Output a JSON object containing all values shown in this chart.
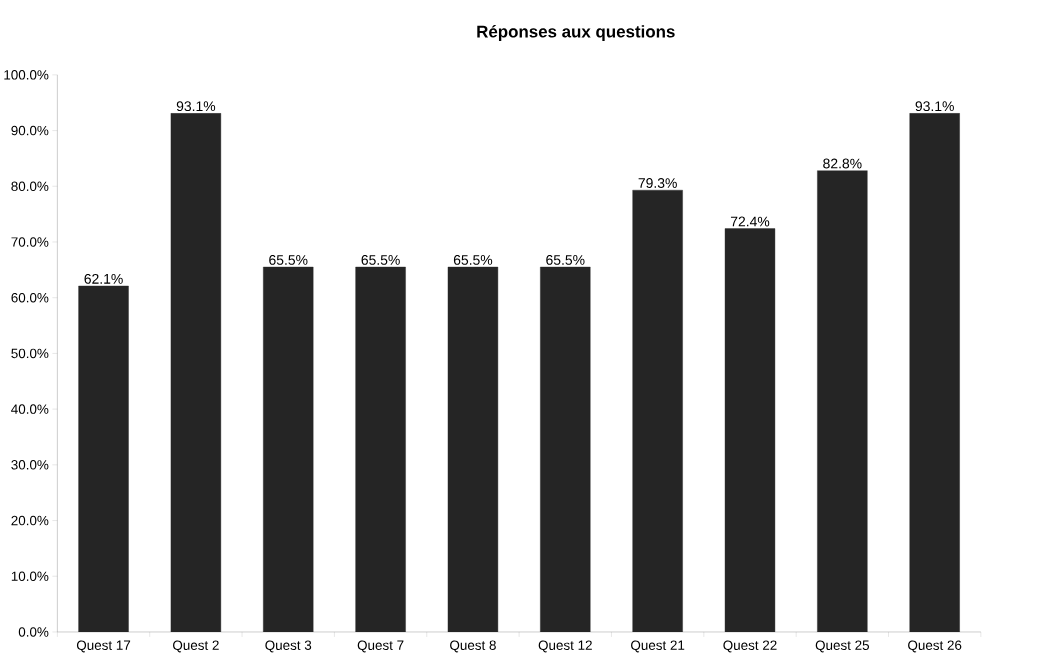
{
  "chart_data": {
    "type": "bar",
    "title": "Réponses aux questions",
    "categories": [
      "Quest 17",
      "Quest 2",
      "Quest 3",
      "Quest 7",
      "Quest 8",
      "Quest 12",
      "Quest 21",
      "Quest 22",
      "Quest 25",
      "Quest 26"
    ],
    "values": [
      62.1,
      93.1,
      65.5,
      65.5,
      65.5,
      65.5,
      79.3,
      72.4,
      82.8,
      93.1
    ],
    "value_labels": [
      "62.1%",
      "93.1%",
      "65.5%",
      "65.5%",
      "65.5%",
      "65.5%",
      "79.3%",
      "72.4%",
      "82.8%",
      "93.1%"
    ],
    "color": "#252525",
    "ylim": [
      0,
      100
    ],
    "yticks": [
      {
        "value": 0,
        "label": "0.0%"
      },
      {
        "value": 10,
        "label": "10.0%"
      },
      {
        "value": 20,
        "label": "20.0%"
      },
      {
        "value": 30,
        "label": "30.0%"
      },
      {
        "value": 40,
        "label": "40.0%"
      },
      {
        "value": 50,
        "label": "50.0%"
      },
      {
        "value": 60,
        "label": "60.0%"
      },
      {
        "value": 70,
        "label": "70.0%"
      },
      {
        "value": 80,
        "label": "80.0%"
      },
      {
        "value": 90,
        "label": "90.0%"
      },
      {
        "value": 100,
        "label": "100.0%"
      }
    ],
    "grid": false
  }
}
